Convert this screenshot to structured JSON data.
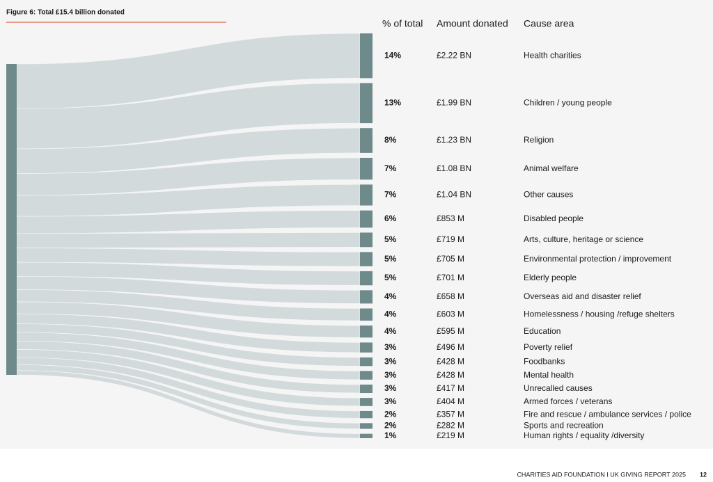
{
  "chart_data": {
    "type": "sankey",
    "title": "Figure 6: Total £15.4 billion donated",
    "column_headers": [
      "% of total",
      "Amount donated",
      "Cause area"
    ],
    "categories": [
      "Health charities",
      "Children / young people",
      "Religion",
      "Animal welfare",
      "Other causes",
      "Disabled people",
      "Arts, culture, heritage or science",
      "Environmental protection / improvement",
      "Elderly people",
      "Overseas aid and disaster relief",
      "Homelessness / housing /refuge shelters",
      "Education",
      "Poverty relief",
      "Foodbanks",
      "Mental health",
      "Unrecalled causes",
      "Armed forces / veterans",
      "Fire and rescue / ambulance services / police",
      "Sports and recreation",
      "Human rights / equality /diversity"
    ],
    "values": [
      2220,
      1990,
      1230,
      1080,
      1040,
      853,
      719,
      705,
      701,
      658,
      603,
      595,
      496,
      428,
      428,
      417,
      404,
      357,
      282,
      219
    ],
    "value_labels": [
      "£2.22 BN",
      "£1.99 BN",
      "£1.23 BN",
      "£1.08 BN",
      "£1.04 BN",
      "£853 M",
      "£719 M",
      "£705 M",
      "£701 M",
      "£658 M",
      "£603 M",
      "£595 M",
      "£496 M",
      "£428 M",
      "£428 M",
      "£417 M",
      "£404 M",
      "£357 M",
      "£282 M",
      "£219 M"
    ],
    "percentages": [
      14,
      13,
      8,
      7,
      7,
      6,
      5,
      5,
      5,
      4,
      4,
      4,
      3,
      3,
      3,
      3,
      3,
      2,
      2,
      1
    ],
    "percentage_labels": [
      "14%",
      "13%",
      "8%",
      "7%",
      "7%",
      "6%",
      "5%",
      "5%",
      "5%",
      "4%",
      "4%",
      "4%",
      "3%",
      "3%",
      "3%",
      "3%",
      "3%",
      "2%",
      "2%",
      "1%"
    ],
    "node_color": "#6f8a8a",
    "flow_color": "#d3dadc",
    "footer": {
      "source": "CHARITIES AID FOUNDATION I UK GIVING REPORT 2025",
      "page": "12"
    }
  }
}
